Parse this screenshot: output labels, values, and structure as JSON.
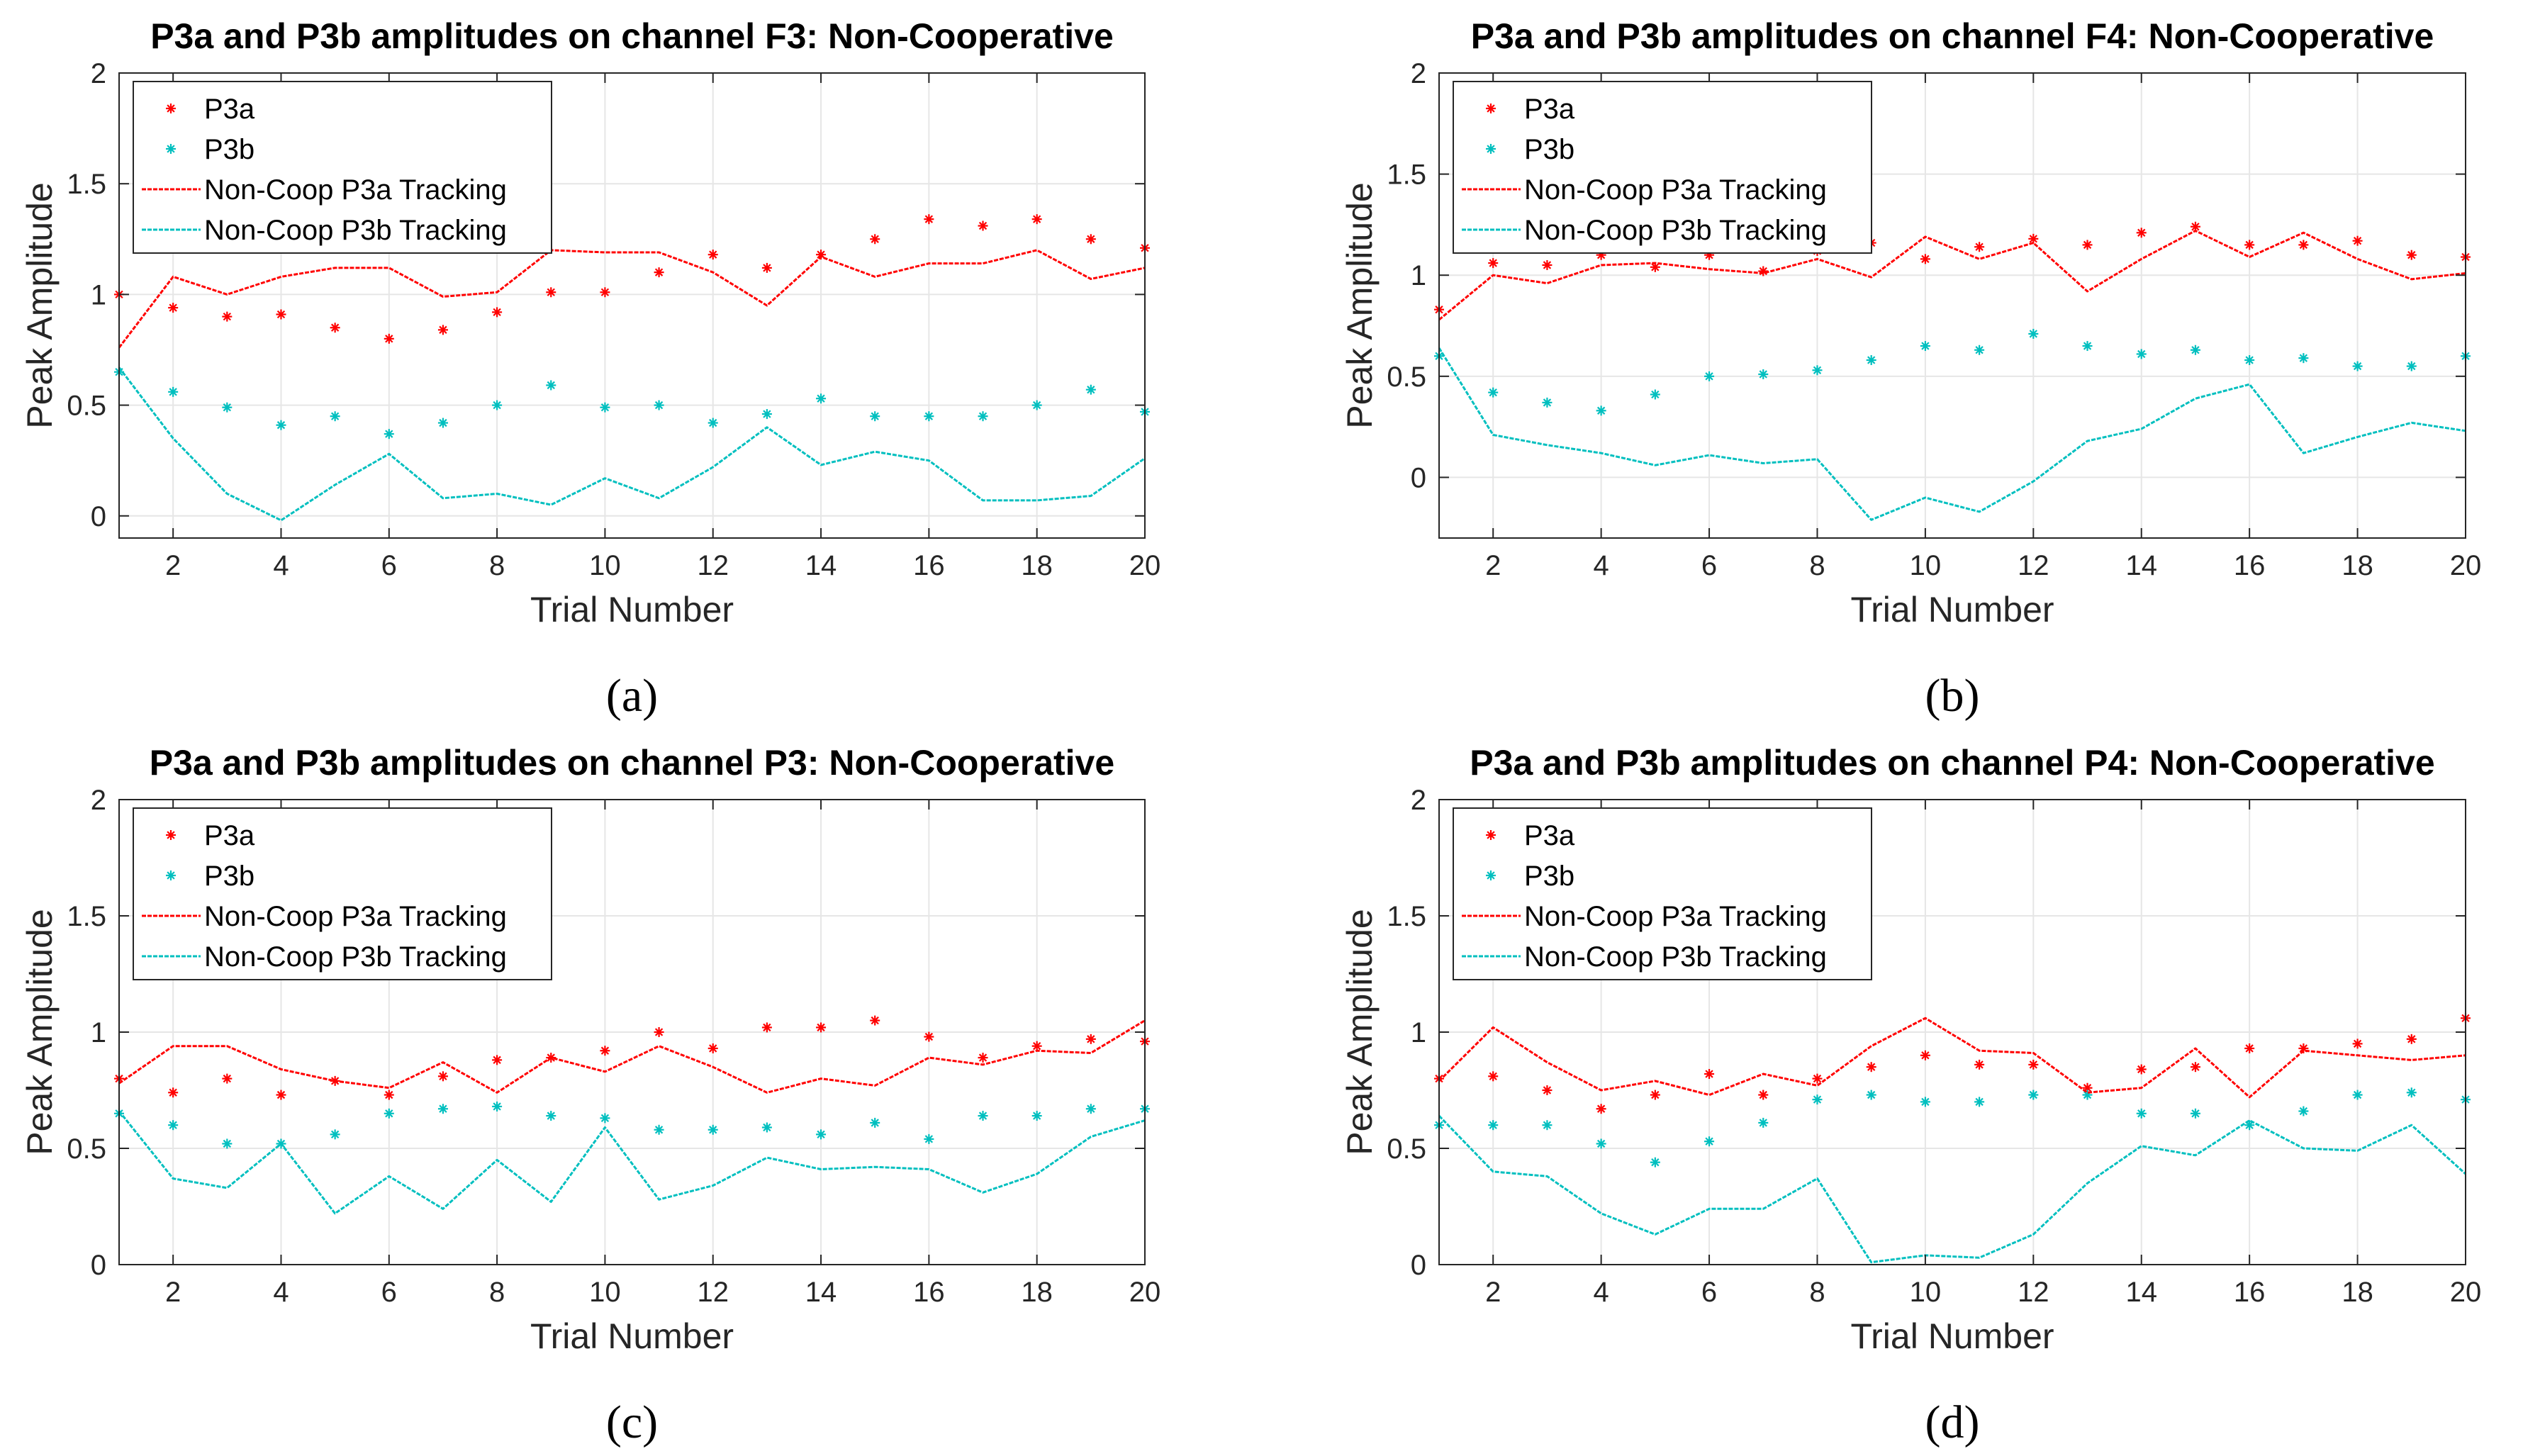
{
  "figure": {
    "colors": {
      "p3a": "#ff0000",
      "p3b": "#00bfbf",
      "grid": "#e6e6e6",
      "axis": "#262626"
    }
  },
  "chart_data": [
    {
      "type": "line",
      "caption": "(a)",
      "title": "P3a and P3b amplitudes on channel F3: Non-Cooperative",
      "xlabel": "Trial Number",
      "ylabel": "Peak Amplitude",
      "xlim": [
        1,
        20
      ],
      "ylim": [
        -0.1,
        2
      ],
      "xticks": [
        2,
        4,
        6,
        8,
        10,
        12,
        14,
        16,
        18,
        20
      ],
      "yticks": [
        0,
        0.5,
        1,
        1.5,
        2
      ],
      "ytick_labels": [
        "0",
        "0.5",
        "1",
        "1.5",
        "2"
      ],
      "grid": true,
      "legend_position": "top-left",
      "x": [
        1,
        2,
        3,
        4,
        5,
        6,
        7,
        8,
        9,
        10,
        11,
        12,
        13,
        14,
        15,
        16,
        17,
        18,
        19,
        20
      ],
      "series": [
        {
          "name": "P3a",
          "style": "markers",
          "color": "#ff0000",
          "values": [
            1.0,
            0.94,
            0.9,
            0.91,
            0.85,
            0.8,
            0.84,
            0.92,
            1.01,
            1.01,
            1.1,
            1.18,
            1.12,
            1.18,
            1.25,
            1.34,
            1.31,
            1.34,
            1.25,
            1.21
          ]
        },
        {
          "name": "P3b",
          "style": "markers",
          "color": "#00bfbf",
          "values": [
            0.65,
            0.56,
            0.49,
            0.41,
            0.45,
            0.37,
            0.42,
            0.5,
            0.59,
            0.49,
            0.5,
            0.42,
            0.46,
            0.53,
            0.45,
            0.45,
            0.45,
            0.5,
            0.57,
            0.47
          ]
        },
        {
          "name": "Non-Coop P3a Tracking",
          "style": "line",
          "color": "#ff0000",
          "values": [
            0.76,
            1.08,
            1.0,
            1.08,
            1.12,
            1.12,
            0.99,
            1.01,
            1.2,
            1.19,
            1.19,
            1.1,
            0.95,
            1.17,
            1.08,
            1.14,
            1.14,
            1.2,
            1.07,
            1.12
          ]
        },
        {
          "name": "Non-Coop P3b Tracking",
          "style": "line",
          "color": "#00bfbf",
          "values": [
            0.67,
            0.35,
            0.1,
            -0.02,
            0.14,
            0.28,
            0.08,
            0.1,
            0.05,
            0.17,
            0.08,
            0.22,
            0.4,
            0.23,
            0.29,
            0.25,
            0.07,
            0.07,
            0.09,
            0.26
          ]
        }
      ]
    },
    {
      "type": "line",
      "caption": "(b)",
      "title": "P3a and P3b amplitudes on channel F4: Non-Cooperative",
      "xlabel": "Trial Number",
      "ylabel": "Peak Amplitude",
      "xlim": [
        1,
        20
      ],
      "ylim": [
        -0.3,
        2
      ],
      "xticks": [
        2,
        4,
        6,
        8,
        10,
        12,
        14,
        16,
        18,
        20
      ],
      "yticks": [
        0,
        0.5,
        1,
        1.5,
        2
      ],
      "ytick_labels": [
        "0",
        "0.5",
        "1",
        "1.5",
        "2"
      ],
      "grid": true,
      "legend_position": "top-left",
      "x": [
        1,
        2,
        3,
        4,
        5,
        6,
        7,
        8,
        9,
        10,
        11,
        12,
        13,
        14,
        15,
        16,
        17,
        18,
        19,
        20
      ],
      "series": [
        {
          "name": "P3a",
          "style": "markers",
          "color": "#ff0000",
          "values": [
            0.83,
            1.06,
            1.05,
            1.1,
            1.04,
            1.1,
            1.02,
            1.12,
            1.16,
            1.08,
            1.14,
            1.18,
            1.15,
            1.21,
            1.24,
            1.15,
            1.15,
            1.17,
            1.1,
            1.09
          ]
        },
        {
          "name": "P3b",
          "style": "markers",
          "color": "#00bfbf",
          "values": [
            0.6,
            0.42,
            0.37,
            0.33,
            0.41,
            0.5,
            0.51,
            0.53,
            0.58,
            0.65,
            0.63,
            0.71,
            0.65,
            0.61,
            0.63,
            0.58,
            0.59,
            0.55,
            0.55,
            0.6
          ]
        },
        {
          "name": "Non-Coop P3a Tracking",
          "style": "line",
          "color": "#ff0000",
          "values": [
            0.78,
            1.0,
            0.96,
            1.05,
            1.06,
            1.03,
            1.01,
            1.08,
            0.99,
            1.19,
            1.08,
            1.16,
            0.92,
            1.08,
            1.22,
            1.09,
            1.21,
            1.08,
            0.98,
            1.01
          ]
        },
        {
          "name": "Non-Coop P3b Tracking",
          "style": "line",
          "color": "#00bfbf",
          "values": [
            0.64,
            0.21,
            0.16,
            0.12,
            0.06,
            0.11,
            0.07,
            0.09,
            -0.21,
            -0.1,
            -0.17,
            -0.02,
            0.18,
            0.24,
            0.39,
            0.46,
            0.12,
            0.2,
            0.27,
            0.23
          ]
        }
      ]
    },
    {
      "type": "line",
      "caption": "(c)",
      "title": "P3a and P3b amplitudes on channel P3: Non-Cooperative",
      "xlabel": "Trial Number",
      "ylabel": "Peak Amplitude",
      "xlim": [
        1,
        20
      ],
      "ylim": [
        0,
        2
      ],
      "xticks": [
        2,
        4,
        6,
        8,
        10,
        12,
        14,
        16,
        18,
        20
      ],
      "yticks": [
        0,
        0.5,
        1,
        1.5,
        2
      ],
      "ytick_labels": [
        "0",
        "0.5",
        "1",
        "1.5",
        "2"
      ],
      "grid": true,
      "legend_position": "top-left",
      "x": [
        1,
        2,
        3,
        4,
        5,
        6,
        7,
        8,
        9,
        10,
        11,
        12,
        13,
        14,
        15,
        16,
        17,
        18,
        19,
        20
      ],
      "series": [
        {
          "name": "P3a",
          "style": "markers",
          "color": "#ff0000",
          "values": [
            0.8,
            0.74,
            0.8,
            0.73,
            0.79,
            0.73,
            0.81,
            0.88,
            0.89,
            0.92,
            1.0,
            0.93,
            1.02,
            1.02,
            1.05,
            0.98,
            0.89,
            0.94,
            0.97,
            0.96
          ]
        },
        {
          "name": "P3b",
          "style": "markers",
          "color": "#00bfbf",
          "values": [
            0.65,
            0.6,
            0.52,
            0.52,
            0.56,
            0.65,
            0.67,
            0.68,
            0.64,
            0.63,
            0.58,
            0.58,
            0.59,
            0.56,
            0.61,
            0.54,
            0.64,
            0.64,
            0.67,
            0.67
          ]
        },
        {
          "name": "Non-Coop P3a Tracking",
          "style": "line",
          "color": "#ff0000",
          "values": [
            0.78,
            0.94,
            0.94,
            0.84,
            0.79,
            0.76,
            0.87,
            0.74,
            0.89,
            0.83,
            0.94,
            0.85,
            0.74,
            0.8,
            0.77,
            0.89,
            0.86,
            0.92,
            0.91,
            1.05
          ]
        },
        {
          "name": "Non-Coop P3b Tracking",
          "style": "line",
          "color": "#00bfbf",
          "values": [
            0.66,
            0.37,
            0.33,
            0.52,
            0.22,
            0.38,
            0.24,
            0.45,
            0.27,
            0.59,
            0.28,
            0.34,
            0.46,
            0.41,
            0.42,
            0.41,
            0.31,
            0.39,
            0.55,
            0.62
          ]
        }
      ]
    },
    {
      "type": "line",
      "caption": "(d)",
      "title": "P3a and P3b amplitudes on channel P4: Non-Cooperative",
      "xlabel": "Trial Number",
      "ylabel": "Peak Amplitude",
      "xlim": [
        1,
        20
      ],
      "ylim": [
        0,
        2
      ],
      "xticks": [
        2,
        4,
        6,
        8,
        10,
        12,
        14,
        16,
        18,
        20
      ],
      "yticks": [
        0,
        0.5,
        1,
        1.5,
        2
      ],
      "ytick_labels": [
        "0",
        "0.5",
        "1",
        "1.5",
        "2"
      ],
      "grid": true,
      "legend_position": "top-left",
      "x": [
        1,
        2,
        3,
        4,
        5,
        6,
        7,
        8,
        9,
        10,
        11,
        12,
        13,
        14,
        15,
        16,
        17,
        18,
        19,
        20
      ],
      "series": [
        {
          "name": "P3a",
          "style": "markers",
          "color": "#ff0000",
          "values": [
            0.8,
            0.81,
            0.75,
            0.67,
            0.73,
            0.82,
            0.73,
            0.8,
            0.85,
            0.9,
            0.86,
            0.86,
            0.76,
            0.84,
            0.85,
            0.93,
            0.93,
            0.95,
            0.97,
            1.06
          ]
        },
        {
          "name": "P3b",
          "style": "markers",
          "color": "#00bfbf",
          "values": [
            0.6,
            0.6,
            0.6,
            0.52,
            0.44,
            0.53,
            0.61,
            0.71,
            0.73,
            0.7,
            0.7,
            0.73,
            0.73,
            0.65,
            0.65,
            0.6,
            0.66,
            0.73,
            0.74,
            0.71
          ]
        },
        {
          "name": "Non-Coop P3a Tracking",
          "style": "line",
          "color": "#ff0000",
          "values": [
            0.79,
            1.02,
            0.87,
            0.75,
            0.79,
            0.73,
            0.82,
            0.77,
            0.94,
            1.06,
            0.92,
            0.91,
            0.74,
            0.76,
            0.93,
            0.72,
            0.92,
            0.9,
            0.88,
            0.9
          ]
        },
        {
          "name": "Non-Coop P3b Tracking",
          "style": "line",
          "color": "#00bfbf",
          "values": [
            0.64,
            0.4,
            0.38,
            0.22,
            0.13,
            0.24,
            0.24,
            0.37,
            0.01,
            0.04,
            0.03,
            0.13,
            0.35,
            0.51,
            0.47,
            0.62,
            0.5,
            0.49,
            0.6,
            0.39
          ]
        }
      ]
    }
  ]
}
